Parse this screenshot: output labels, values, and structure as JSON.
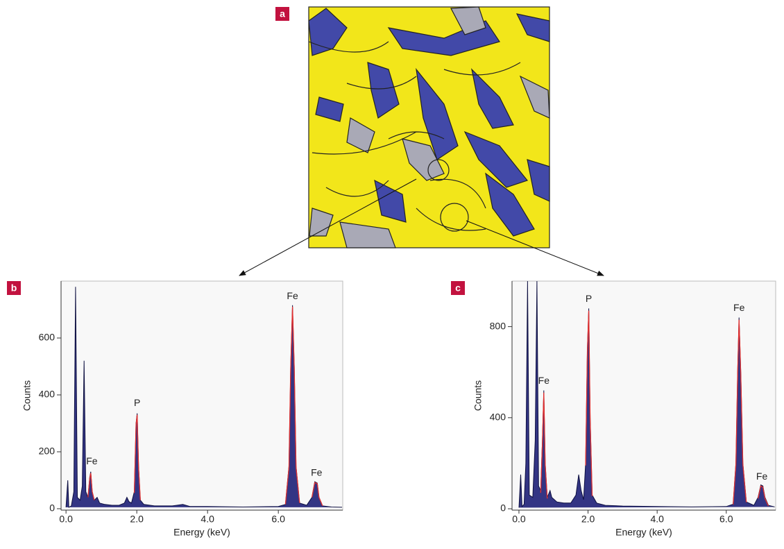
{
  "panel_a": {
    "label": "a"
  },
  "chart_data": [
    {
      "type": "line",
      "panel_label": "b",
      "y_label": "Counts",
      "x_label": "Energy (keV)",
      "xlim": [
        -0.14,
        7.82
      ],
      "ylim": [
        -5,
        800
      ],
      "xticks": [
        {
          "value": 0,
          "label": "0.0"
        },
        {
          "value": 2,
          "label": "2.0"
        },
        {
          "value": 4,
          "label": "4.0"
        },
        {
          "value": 6,
          "label": "6.0"
        }
      ],
      "yticks": [
        0,
        200,
        400,
        600
      ],
      "series": [
        {
          "color": "#22247a",
          "fill": true,
          "x": [
            0.0,
            0.05,
            0.08,
            0.15,
            0.22,
            0.27,
            0.32,
            0.4,
            0.46,
            0.51,
            0.56,
            0.62,
            0.67,
            0.7,
            0.74,
            0.8,
            0.88,
            0.95,
            1.1,
            1.3,
            1.5,
            1.65,
            1.72,
            1.78,
            1.85,
            1.93,
            1.98,
            2.01,
            2.05,
            2.1,
            2.2,
            2.5,
            3.0,
            3.3,
            3.5,
            4.0,
            5.0,
            6.0,
            6.2,
            6.3,
            6.35,
            6.4,
            6.45,
            6.5,
            6.6,
            6.8,
            6.95,
            7.03,
            7.1,
            7.15,
            7.25,
            7.5,
            7.8
          ],
          "values": [
            5,
            100,
            5,
            10,
            60,
            780,
            40,
            30,
            80,
            520,
            60,
            40,
            110,
            130,
            60,
            30,
            40,
            20,
            15,
            12,
            12,
            20,
            40,
            25,
            20,
            60,
            300,
            335,
            150,
            30,
            15,
            10,
            10,
            15,
            8,
            8,
            6,
            8,
            15,
            150,
            500,
            715,
            500,
            150,
            20,
            12,
            40,
            95,
            90,
            40,
            10,
            6,
            5
          ]
        },
        {
          "color": "#e03030",
          "fill": false,
          "x": [
            0.62,
            0.67,
            0.7,
            0.74,
            0.8,
            null,
            1.93,
            1.98,
            2.01,
            2.05,
            2.1,
            null,
            6.2,
            6.3,
            6.35,
            6.4,
            6.45,
            6.5,
            6.6,
            null,
            6.95,
            7.03,
            7.1,
            7.15,
            7.25
          ],
          "values": [
            40,
            105,
            125,
            60,
            30,
            null,
            55,
            295,
            330,
            145,
            30,
            null,
            15,
            145,
            495,
            710,
            495,
            145,
            20,
            null,
            40,
            92,
            88,
            40,
            10
          ]
        }
      ],
      "annotations": [
        {
          "text": "Fe",
          "x": 0.73,
          "y": 165
        },
        {
          "text": "P",
          "x": 2.01,
          "y": 370
        },
        {
          "text": "Fe",
          "x": 6.4,
          "y": 745
        },
        {
          "text": "Fe",
          "x": 7.08,
          "y": 125
        }
      ]
    },
    {
      "type": "line",
      "panel_label": "c",
      "y_label": "Counts",
      "x_label": "Energy (keV)",
      "xlim": [
        -0.2,
        7.43
      ],
      "ylim": [
        -6,
        1000
      ],
      "xticks": [
        {
          "value": 0,
          "label": "0.0"
        },
        {
          "value": 2,
          "label": "2.0"
        },
        {
          "value": 4,
          "label": "4.0"
        },
        {
          "value": 6,
          "label": "6.0"
        }
      ],
      "yticks": [
        0,
        400,
        800
      ],
      "series": [
        {
          "color": "#22247a",
          "fill": true,
          "x": [
            0.0,
            0.05,
            0.09,
            0.15,
            0.2,
            0.25,
            0.3,
            0.4,
            0.47,
            0.52,
            0.57,
            0.63,
            0.68,
            0.72,
            0.76,
            0.82,
            0.9,
            0.95,
            1.1,
            1.3,
            1.5,
            1.65,
            1.73,
            1.8,
            1.87,
            1.93,
            1.98,
            2.02,
            2.06,
            2.12,
            2.25,
            2.5,
            3.0,
            4.0,
            5.0,
            6.0,
            6.2,
            6.28,
            6.33,
            6.37,
            6.42,
            6.48,
            6.58,
            6.8,
            6.92,
            7.0,
            7.06,
            7.12,
            7.22,
            7.4
          ],
          "values": [
            5,
            150,
            10,
            20,
            200,
            1000,
            60,
            50,
            300,
            1000,
            100,
            80,
            300,
            520,
            200,
            50,
            80,
            50,
            30,
            25,
            25,
            60,
            150,
            80,
            40,
            200,
            700,
            880,
            400,
            60,
            25,
            15,
            12,
            10,
            8,
            10,
            20,
            200,
            600,
            840,
            600,
            200,
            30,
            15,
            50,
            105,
            100,
            50,
            15,
            8
          ]
        },
        {
          "color": "#e03030",
          "fill": false,
          "x": [
            0.63,
            0.68,
            0.72,
            0.76,
            0.82,
            null,
            1.93,
            1.98,
            2.02,
            2.06,
            2.12,
            null,
            6.2,
            6.28,
            6.33,
            6.37,
            6.42,
            6.48,
            6.58,
            null,
            6.92,
            7.0,
            7.06,
            7.12,
            7.22
          ],
          "values": [
            70,
            290,
            510,
            195,
            45,
            null,
            190,
            690,
            870,
            390,
            55,
            null,
            18,
            195,
            590,
            830,
            590,
            195,
            28,
            null,
            45,
            100,
            95,
            45,
            12
          ]
        }
      ],
      "annotations": [
        {
          "text": "Fe",
          "x": 0.72,
          "y": 560
        },
        {
          "text": "P",
          "x": 2.02,
          "y": 920
        },
        {
          "text": "Fe",
          "x": 6.37,
          "y": 880
        },
        {
          "text": "Fe",
          "x": 7.03,
          "y": 140
        }
      ]
    }
  ]
}
